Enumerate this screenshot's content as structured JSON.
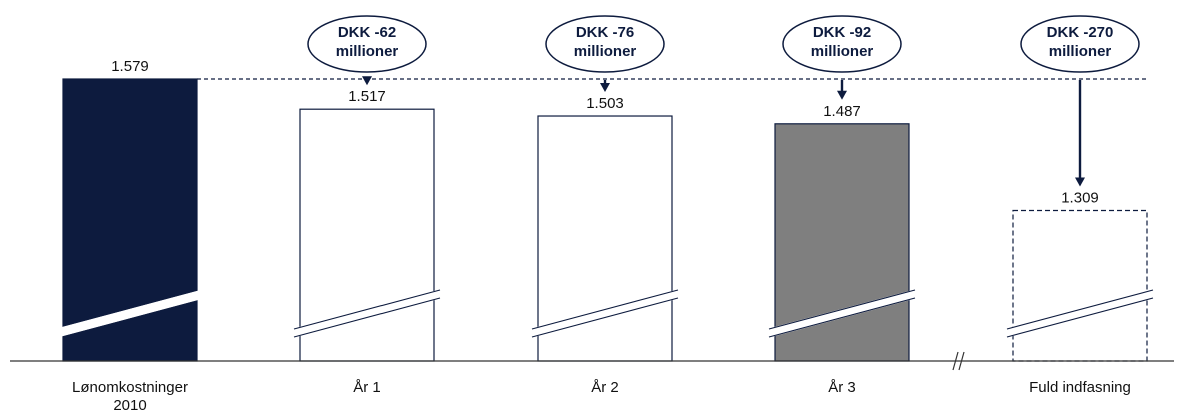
{
  "chart_data": {
    "type": "bar",
    "categories": [
      "Lønomkostninger 2010",
      "År 1",
      "År 2",
      "År 3",
      "Fuld indfasning"
    ],
    "category_lines": [
      [
        "Lønomkostninger",
        "2010"
      ],
      [
        "År 1"
      ],
      [
        "År 2"
      ],
      [
        "År 3"
      ],
      [
        "Fuld indfasning"
      ]
    ],
    "values": [
      1579,
      1517,
      1503,
      1487,
      1309
    ],
    "value_labels": [
      "1.579",
      "1.517",
      "1.503",
      "1.487",
      "1.309"
    ],
    "reductions": [
      {
        "category": "År 1",
        "value": -62,
        "label_lines": [
          "DKK -62",
          "millioner"
        ]
      },
      {
        "category": "År 2",
        "value": -76,
        "label_lines": [
          "DKK -76",
          "millioner"
        ]
      },
      {
        "category": "År 3",
        "value": -92,
        "label_lines": [
          "DKK -92",
          "millioner"
        ]
      },
      {
        "category": "Fuld indfasning",
        "value": -270,
        "label_lines": [
          "DKK -270",
          "millioner"
        ]
      }
    ],
    "bar_styles": [
      "solid-navy",
      "outline",
      "outline",
      "solid-gray",
      "dashed-outline"
    ],
    "axis_break": true,
    "reference_line": {
      "value": 1579,
      "style": "dashed"
    },
    "title": "",
    "xlabel": "",
    "ylabel": "",
    "grid": false
  },
  "colors": {
    "navy": "#0d1b3e",
    "gray": "#7f7f7f",
    "outline": "#0d1b3e",
    "axis": "#333333"
  }
}
